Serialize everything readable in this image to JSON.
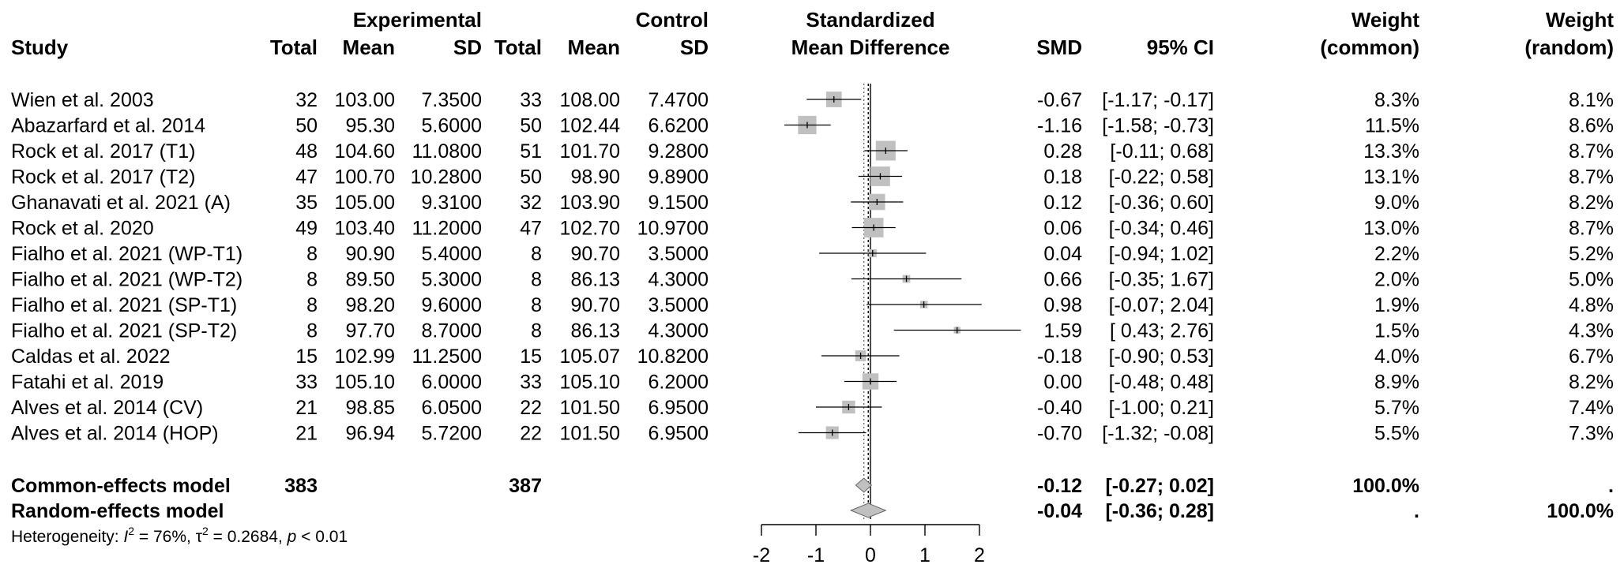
{
  "headers": {
    "group_experimental": "Experimental",
    "group_control": "Control",
    "study": "Study",
    "total": "Total",
    "mean": "Mean",
    "sd": "SD",
    "effect_line1": "Standardized",
    "effect_line2": "Mean Difference",
    "smd": "SMD",
    "ci": "95% CI",
    "weight_label": "Weight",
    "common": "(common)",
    "random": "(random)"
  },
  "heterogeneity": {
    "prefix": "Heterogeneity: ",
    "i2_symbol": "I",
    "sup": "2",
    "i2_value": " = 76%, ",
    "tau_symbol": "τ",
    "tau2_value": " = 0.2684, ",
    "p_symbol": "p",
    "p_value": " < 0.01"
  },
  "chart_data": {
    "type": "forest",
    "xlim": [
      -2,
      2
    ],
    "ticks": [
      -2,
      -1,
      0,
      1,
      2
    ],
    "tick_labels": [
      "-2",
      "-1",
      "0",
      "1",
      "2"
    ],
    "reference_line": 0,
    "colors": {
      "square": "#c0c0c0",
      "diamond": "#c0c0c0",
      "line": "#000000"
    },
    "studies": [
      {
        "study": "Wien et al. 2003",
        "e_total": "32",
        "e_mean": "103.00",
        "e_sd": "7.3500",
        "c_total": "33",
        "c_mean": "108.00",
        "c_sd": "7.4700",
        "smd": -0.67,
        "lower": -1.17,
        "upper": -0.17,
        "smd_text": "-0.67",
        "ci_text": "[-1.17; -0.17]",
        "w_common": 8.3,
        "w_random": 8.1,
        "w_common_text": "8.3%",
        "w_random_text": "8.1%"
      },
      {
        "study": "Abazarfard et al. 2014",
        "e_total": "50",
        "e_mean": "95.30",
        "e_sd": "5.6000",
        "c_total": "50",
        "c_mean": "102.44",
        "c_sd": "6.6200",
        "smd": -1.16,
        "lower": -1.58,
        "upper": -0.73,
        "smd_text": "-1.16",
        "ci_text": "[-1.58; -0.73]",
        "w_common": 11.5,
        "w_random": 8.6,
        "w_common_text": "11.5%",
        "w_random_text": "8.6%"
      },
      {
        "study": "Rock et al. 2017 (T1)",
        "e_total": "48",
        "e_mean": "104.60",
        "e_sd": "11.0800",
        "c_total": "51",
        "c_mean": "101.70",
        "c_sd": "9.2800",
        "smd": 0.28,
        "lower": -0.11,
        "upper": 0.68,
        "smd_text": "0.28",
        "ci_text": "[-0.11; 0.68]",
        "w_common": 13.3,
        "w_random": 8.7,
        "w_common_text": "13.3%",
        "w_random_text": "8.7%"
      },
      {
        "study": "Rock et al. 2017 (T2)",
        "e_total": "47",
        "e_mean": "100.70",
        "e_sd": "10.2800",
        "c_total": "50",
        "c_mean": "98.90",
        "c_sd": "9.8900",
        "smd": 0.18,
        "lower": -0.22,
        "upper": 0.58,
        "smd_text": "0.18",
        "ci_text": "[-0.22; 0.58]",
        "w_common": 13.1,
        "w_random": 8.7,
        "w_common_text": "13.1%",
        "w_random_text": "8.7%"
      },
      {
        "study": "Ghanavati et al. 2021 (A)",
        "e_total": "35",
        "e_mean": "105.00",
        "e_sd": "9.3100",
        "c_total": "32",
        "c_mean": "103.90",
        "c_sd": "9.1500",
        "smd": 0.12,
        "lower": -0.36,
        "upper": 0.6,
        "smd_text": "0.12",
        "ci_text": "[-0.36; 0.60]",
        "w_common": 9.0,
        "w_random": 8.2,
        "w_common_text": "9.0%",
        "w_random_text": "8.2%"
      },
      {
        "study": "Rock et al. 2020",
        "e_total": "49",
        "e_mean": "103.40",
        "e_sd": "11.2000",
        "c_total": "47",
        "c_mean": "102.70",
        "c_sd": "10.9700",
        "smd": 0.06,
        "lower": -0.34,
        "upper": 0.46,
        "smd_text": "0.06",
        "ci_text": "[-0.34; 0.46]",
        "w_common": 13.0,
        "w_random": 8.7,
        "w_common_text": "13.0%",
        "w_random_text": "8.7%"
      },
      {
        "study": "Fialho et al. 2021 (WP-T1)",
        "e_total": "8",
        "e_mean": "90.90",
        "e_sd": "5.4000",
        "c_total": "8",
        "c_mean": "90.70",
        "c_sd": "3.5000",
        "smd": 0.04,
        "lower": -0.94,
        "upper": 1.02,
        "smd_text": "0.04",
        "ci_text": "[-0.94; 1.02]",
        "w_common": 2.2,
        "w_random": 5.2,
        "w_common_text": "2.2%",
        "w_random_text": "5.2%"
      },
      {
        "study": "Fialho et al. 2021 (WP-T2)",
        "e_total": "8",
        "e_mean": "89.50",
        "e_sd": "5.3000",
        "c_total": "8",
        "c_mean": "86.13",
        "c_sd": "4.3000",
        "smd": 0.66,
        "lower": -0.35,
        "upper": 1.67,
        "smd_text": "0.66",
        "ci_text": "[-0.35; 1.67]",
        "w_common": 2.0,
        "w_random": 5.0,
        "w_common_text": "2.0%",
        "w_random_text": "5.0%"
      },
      {
        "study": "Fialho et al. 2021 (SP-T1)",
        "e_total": "8",
        "e_mean": "98.20",
        "e_sd": "9.6000",
        "c_total": "8",
        "c_mean": "90.70",
        "c_sd": "3.5000",
        "smd": 0.98,
        "lower": -0.07,
        "upper": 2.04,
        "smd_text": "0.98",
        "ci_text": "[-0.07; 2.04]",
        "w_common": 1.9,
        "w_random": 4.8,
        "w_common_text": "1.9%",
        "w_random_text": "4.8%"
      },
      {
        "study": "Fialho et al. 2021 (SP-T2)",
        "e_total": "8",
        "e_mean": "97.70",
        "e_sd": "8.7000",
        "c_total": "8",
        "c_mean": "86.13",
        "c_sd": "4.3000",
        "smd": 1.59,
        "lower": 0.43,
        "upper": 2.76,
        "smd_text": "1.59",
        "ci_text": "[ 0.43; 2.76]",
        "w_common": 1.5,
        "w_random": 4.3,
        "w_common_text": "1.5%",
        "w_random_text": "4.3%"
      },
      {
        "study": "Caldas et al. 2022",
        "e_total": "15",
        "e_mean": "102.99",
        "e_sd": "11.2500",
        "c_total": "15",
        "c_mean": "105.07",
        "c_sd": "10.8200",
        "smd": -0.18,
        "lower": -0.9,
        "upper": 0.53,
        "smd_text": "-0.18",
        "ci_text": "[-0.90; 0.53]",
        "w_common": 4.0,
        "w_random": 6.7,
        "w_common_text": "4.0%",
        "w_random_text": "6.7%"
      },
      {
        "study": "Fatahi et al. 2019",
        "e_total": "33",
        "e_mean": "105.10",
        "e_sd": "6.0000",
        "c_total": "33",
        "c_mean": "105.10",
        "c_sd": "6.2000",
        "smd": 0.0,
        "lower": -0.48,
        "upper": 0.48,
        "smd_text": "0.00",
        "ci_text": "[-0.48; 0.48]",
        "w_common": 8.9,
        "w_random": 8.2,
        "w_common_text": "8.9%",
        "w_random_text": "8.2%"
      },
      {
        "study": "Alves et al. 2014 (CV)",
        "e_total": "21",
        "e_mean": "98.85",
        "e_sd": "6.0500",
        "c_total": "22",
        "c_mean": "101.50",
        "c_sd": "6.9500",
        "smd": -0.4,
        "lower": -1.0,
        "upper": 0.21,
        "smd_text": "-0.40",
        "ci_text": "[-1.00; 0.21]",
        "w_common": 5.7,
        "w_random": 7.4,
        "w_common_text": "5.7%",
        "w_random_text": "7.4%"
      },
      {
        "study": "Alves et al. 2014 (HOP)",
        "e_total": "21",
        "e_mean": "96.94",
        "e_sd": "5.7200",
        "c_total": "22",
        "c_mean": "101.50",
        "c_sd": "6.9500",
        "smd": -0.7,
        "lower": -1.32,
        "upper": -0.08,
        "smd_text": "-0.70",
        "ci_text": "[-1.32; -0.08]",
        "w_common": 5.5,
        "w_random": 7.3,
        "w_common_text": "5.5%",
        "w_random_text": "7.3%"
      }
    ],
    "summaries": [
      {
        "label": "Common-effects model",
        "e_total": "383",
        "c_total": "387",
        "smd": -0.12,
        "lower": -0.27,
        "upper": 0.02,
        "smd_text": "-0.12",
        "ci_text": "[-0.27; 0.02]",
        "w_common_text": "100.0%",
        "w_random_text": "."
      },
      {
        "label": "Random-effects model",
        "e_total": "",
        "c_total": "",
        "smd": -0.04,
        "lower": -0.36,
        "upper": 0.28,
        "smd_text": "-0.04",
        "ci_text": "[-0.36; 0.28]",
        "w_common_text": ".",
        "w_random_text": "100.0%"
      }
    ]
  }
}
